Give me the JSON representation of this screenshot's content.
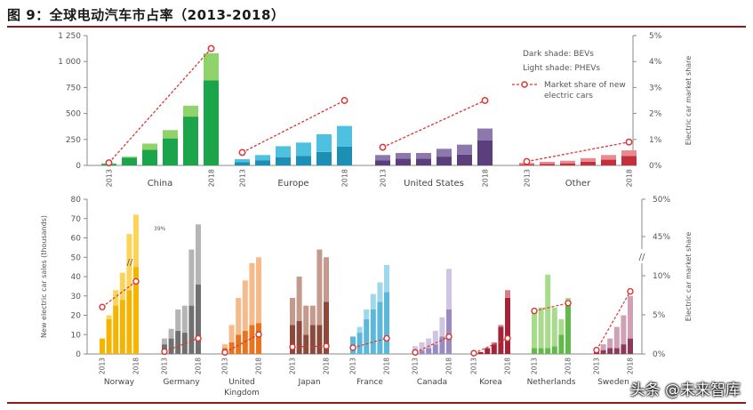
{
  "title": "图 9：全球电动汽车市占率（2013-2018）",
  "watermark": "头条 @未来智库",
  "chart_data": [
    {
      "type": "bar",
      "stacked": true,
      "groups": [
        {
          "name": "China",
          "color_dark": "#1ca44a",
          "color_light": "#8fd36a",
          "bevs": [
            15,
            75,
            150,
            260,
            470,
            820
          ],
          "phevs": [
            5,
            10,
            60,
            80,
            105,
            260
          ],
          "share": [
            0.1,
            null,
            null,
            null,
            null,
            4.5
          ]
        },
        {
          "name": "Europe",
          "color_dark": "#1d8fb5",
          "color_light": "#4ec1e0",
          "bevs": [
            30,
            50,
            80,
            90,
            130,
            180
          ],
          "phevs": [
            30,
            50,
            105,
            130,
            170,
            200
          ],
          "share": [
            0.5,
            null,
            null,
            null,
            null,
            2.5
          ]
        },
        {
          "name": "United States",
          "color_dark": "#5b3f7c",
          "color_light": "#8c78ac",
          "bevs": [
            50,
            65,
            65,
            85,
            105,
            240
          ],
          "phevs": [
            50,
            55,
            55,
            75,
            95,
            115
          ],
          "share": [
            0.7,
            null,
            null,
            null,
            null,
            2.5
          ]
        },
        {
          "name": "Other",
          "color_dark": "#c2303b",
          "color_light": "#e88a8f",
          "bevs": [
            10,
            15,
            20,
            35,
            55,
            90
          ],
          "phevs": [
            15,
            20,
            25,
            35,
            45,
            55
          ],
          "share": [
            0.15,
            null,
            null,
            null,
            null,
            0.9
          ]
        }
      ],
      "ylim": [
        0,
        1250
      ],
      "yticks": [
        0,
        250,
        500,
        750,
        1000,
        1250
      ],
      "ytick_labels": [
        "0",
        "250",
        "500",
        "750",
        "1 000",
        "1 250"
      ],
      "y2lim": [
        0,
        5
      ],
      "y2ticks": [
        0,
        1,
        2,
        3,
        4,
        5
      ],
      "y2tick_labels": [
        "0%",
        "1%",
        "2%",
        "3%",
        "4%",
        "5%"
      ],
      "y2label": "Electric car market share",
      "year_start": "2013",
      "year_end": "2018",
      "legend": {
        "dark": "Dark shade: BEVs",
        "light": "Light shade: PHEVs",
        "line": "Market share of new electric cars"
      },
      "legend_position": "top-right"
    },
    {
      "type": "bar",
      "stacked": true,
      "groups": [
        {
          "name": "Norway",
          "color_dark": "#f5b400",
          "color_light": "#fcd45a",
          "bevs": [
            8,
            18,
            25,
            28,
            33,
            45
          ],
          "phevs": [
            0,
            2,
            8,
            14,
            29,
            27
          ],
          "share": [
            6,
            null,
            null,
            null,
            null,
            39
          ]
        },
        {
          "name": "Germany",
          "color_dark": "#707070",
          "color_light": "#b5b5b5",
          "bevs": [
            5,
            8,
            12,
            11,
            25,
            36
          ],
          "phevs": [
            3,
            5,
            11,
            14,
            29,
            31
          ],
          "share": [
            0.3,
            null,
            null,
            null,
            null,
            2
          ]
        },
        {
          "name": "United Kingdom",
          "color_dark": "#e8741e",
          "color_light": "#f7ba8b",
          "bevs": [
            3,
            6,
            10,
            12,
            15,
            16
          ],
          "phevs": [
            2,
            9,
            19,
            26,
            32,
            34
          ],
          "share": [
            0.2,
            null,
            null,
            null,
            null,
            2.5
          ]
        },
        {
          "name": "Japan",
          "color_dark": "#8b4a3c",
          "color_light": "#c49a8d",
          "bevs": [
            15,
            17,
            10,
            15,
            15,
            27
          ],
          "phevs": [
            14,
            23,
            15,
            10,
            39,
            23
          ],
          "share": [
            0.9,
            null,
            null,
            null,
            null,
            1
          ]
        },
        {
          "name": "France",
          "color_dark": "#5cb8da",
          "color_light": "#9fd7eb",
          "bevs": [
            9,
            11,
            18,
            23,
            27,
            32
          ],
          "phevs": [
            0,
            3,
            5,
            8,
            10,
            14
          ],
          "share": [
            0.8,
            null,
            null,
            null,
            null,
            2
          ]
        },
        {
          "name": "Canada",
          "color_dark": "#9a8ac0",
          "color_light": "#cfc5e2",
          "bevs": [
            1,
            2,
            3,
            5,
            9,
            23
          ],
          "phevs": [
            3,
            4,
            5,
            7,
            10,
            21
          ],
          "share": [
            0.2,
            null,
            null,
            null,
            null,
            2.2
          ]
        },
        {
          "name": "Korea",
          "color_dark": "#a32438",
          "color_light": "#d87c8c",
          "bevs": [
            1,
            1,
            3,
            5,
            14,
            29
          ],
          "phevs": [
            0,
            0,
            0,
            1,
            1,
            4
          ],
          "share": [
            0.1,
            null,
            null,
            null,
            null,
            2
          ]
        },
        {
          "name": "Netherlands",
          "color_dark": "#63b94c",
          "color_light": "#a8db8c",
          "bevs": [
            3,
            3,
            3,
            4,
            10,
            27
          ],
          "phevs": [
            20,
            21,
            38,
            20,
            8,
            2
          ],
          "share": [
            5.5,
            null,
            null,
            null,
            null,
            6.5
          ]
        },
        {
          "name": "Sweden",
          "color_dark": "#8b3a5c",
          "color_light": "#d0a0b4",
          "bevs": [
            1,
            2,
            3,
            3,
            5,
            8
          ],
          "phevs": [
            0,
            3,
            5,
            11,
            15,
            22
          ],
          "share": [
            0.5,
            null,
            null,
            null,
            null,
            8
          ]
        }
      ],
      "ylim": [
        0,
        80
      ],
      "yticks": [
        0,
        10,
        20,
        30,
        40,
        50,
        60,
        70,
        80
      ],
      "ytick_labels": [
        "0",
        "10",
        "20",
        "30",
        "40",
        "50",
        "60",
        "70",
        "80"
      ],
      "ylabel": "New electric car sales (thousands)",
      "y2ticks": [
        0,
        5,
        10,
        45,
        50
      ],
      "y2tick_labels": [
        "0%",
        "5%",
        "10%",
        "45%",
        "50%"
      ],
      "y2label": "Electric car market share",
      "axis_break": "//",
      "annotation": "39%",
      "year_start": "2013",
      "year_end": "2018"
    }
  ]
}
